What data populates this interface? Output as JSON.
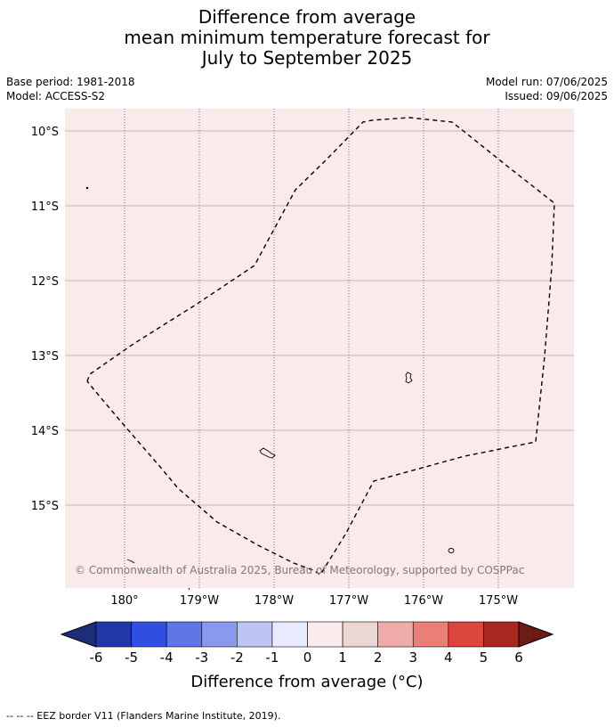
{
  "title": {
    "line1": "Difference from average",
    "line2": "mean minimum temperature forecast for",
    "line3": "July to September 2025"
  },
  "meta": {
    "base_period": "Base period: 1981-2018",
    "model": "Model: ACCESS-S2",
    "model_run": "Model run: 07/06/2025",
    "issued": "Issued: 09/06/2025"
  },
  "map": {
    "background_color": "#fbeaea",
    "lat_labels": [
      "10°S",
      "11°S",
      "12°S",
      "13°S",
      "14°S",
      "15°S"
    ],
    "lon_labels": [
      "180°",
      "179°W",
      "178°W",
      "177°W",
      "176°W",
      "175°W"
    ],
    "credit": "© Commonwealth of Australia 2025, Bureau of Meteorology, supported by COSPPac"
  },
  "colorbar": {
    "ticks": [
      "-6",
      "-5",
      "-4",
      "-3",
      "-2",
      "-1",
      "0",
      "1",
      "2",
      "3",
      "4",
      "5",
      "6"
    ],
    "low_extend_color": "#1f2c7a",
    "high_extend_color": "#6e1a16",
    "colors": [
      "#2338a8",
      "#2e4fe0",
      "#5e76e6",
      "#8899ee",
      "#bcc4f6",
      "#e8eafd",
      "#fbeaea",
      "#ecd6d6",
      "#f0aca8",
      "#ea7f78",
      "#dc463c",
      "#a92820"
    ],
    "label": "Difference from average (°C)"
  },
  "footnote": "--  --  -- EEZ border V11 (Flanders Marine Institute, 2019)."
}
